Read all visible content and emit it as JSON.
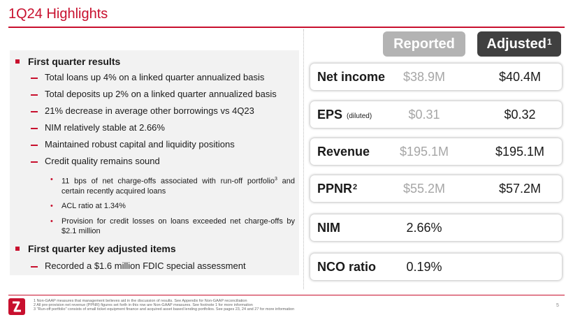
{
  "title": "1Q24 Highlights",
  "columns": {
    "reported": "Reported",
    "adjusted": "Adjusted",
    "adjusted_sup": "1"
  },
  "left": {
    "section1": "First quarter results",
    "items": [
      "Total loans up 4% on a linked quarter annualized basis",
      "Total deposits up 2% on a linked quarter annualized basis",
      "21% decrease in average other borrowings vs 4Q23",
      "NIM relatively stable at 2.66%",
      "Maintained robust capital and liquidity positions",
      "Credit quality remains sound"
    ],
    "sub": [
      {
        "text": "11 bps of net charge-offs associated with run-off portfolio",
        "sup": "3",
        "cont": " and certain recently acquired loans"
      },
      {
        "text": "ACL ratio at 1.34%"
      },
      {
        "text": "Provision for credit losses on loans exceeded net charge-offs by $2.1 million"
      }
    ],
    "section2": "First quarter key adjusted items",
    "items2": [
      "Recorded a $1.6 million FDIC special assessment"
    ]
  },
  "metrics": [
    {
      "label": "Net income",
      "reported": "$38.9M",
      "adjusted": "$40.4M"
    },
    {
      "label": "EPS",
      "note": "(diluted)",
      "reported": "$0.31",
      "adjusted": "$0.32"
    },
    {
      "label": "Revenue",
      "reported": "$195.1M",
      "adjusted": "$195.1M"
    },
    {
      "label": "PPNR",
      "sup": "2",
      "reported": "$55.2M",
      "adjusted": "$57.2M"
    },
    {
      "label": "NIM",
      "value": "2.66%"
    },
    {
      "label": "NCO ratio",
      "value": "0.19%"
    }
  ],
  "footnotes": [
    "1   Non-GAAP measures that management believes aid in the discussion of results. See Appendix for Non-GAAP reconciliation",
    "2   All pre-provision net revenue (PPNR) figures set forth in this row are Non-GAAP measures. See footnote 1 for more information",
    "3   \"Run-off portfolio\" consists of small ticket equipment finance and acquired asset based lending portfolios.  See pages 23, 24 and 27 for more information"
  ],
  "page_number": "5",
  "colors": {
    "accent": "#c8102e",
    "reported_pill": "#b3b3b3",
    "adjusted_pill": "#404040"
  }
}
